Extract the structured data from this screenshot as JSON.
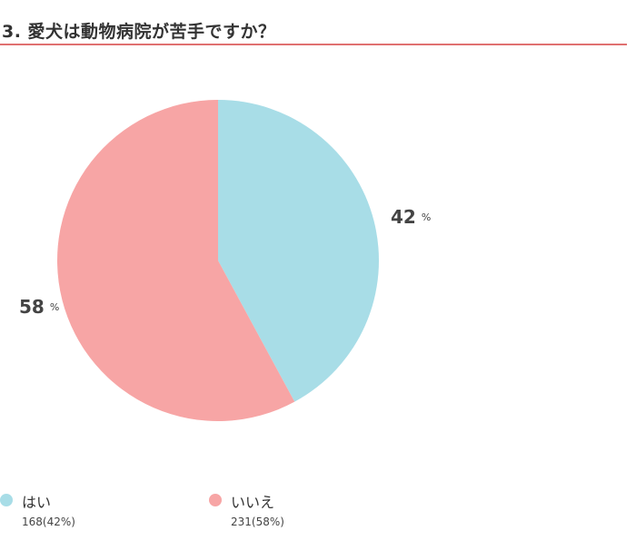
{
  "question": {
    "title": "3. 愛犬は動物病院が苦手ですか？"
  },
  "colors": {
    "accent_rule": "#e07070",
    "yes": "#a8dde7",
    "no": "#f7a5a5"
  },
  "chart_data": {
    "type": "pie",
    "title": "3. 愛犬は動物病院が苦手ですか？",
    "slices": [
      {
        "label": "はい",
        "count": 168,
        "percent": 42,
        "percent_text": "42",
        "sign": "%",
        "legend_count": "168(42%)",
        "color": "#a8dde7"
      },
      {
        "label": "いいえ",
        "count": 231,
        "percent": 58,
        "percent_text": "58",
        "sign": "%",
        "legend_count": "231(58%)",
        "color": "#f7a5a5"
      }
    ],
    "legend_position": "bottom-left"
  }
}
